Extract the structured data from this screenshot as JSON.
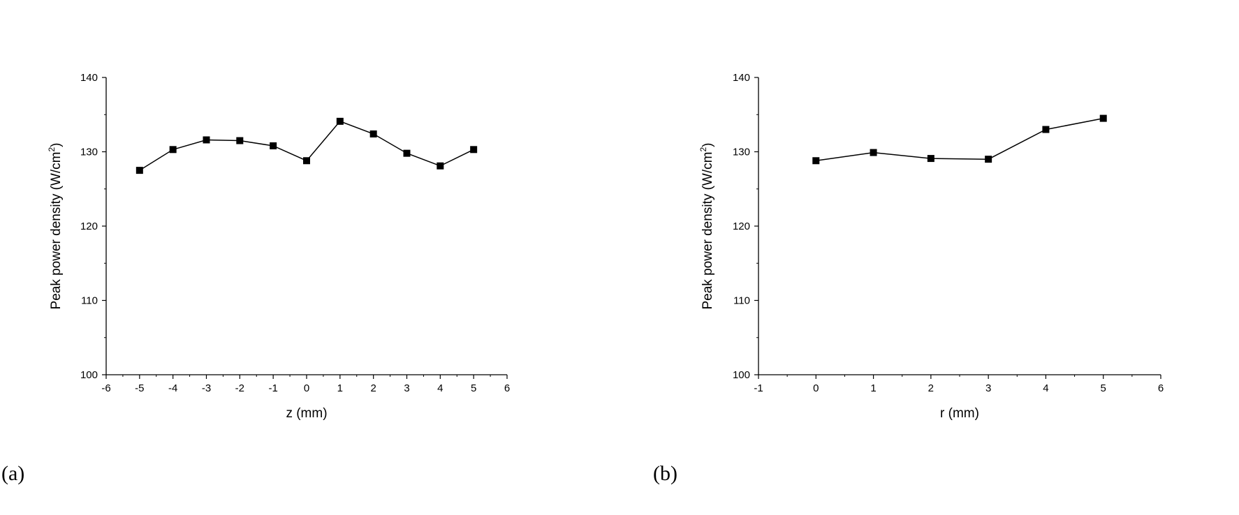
{
  "chart_data": [
    {
      "type": "line",
      "panel_label": "(a)",
      "xlabel": "z (mm)",
      "ylabel": "Peak power density (W/cm",
      "ylabel_sup": "2",
      "ylabel_end": ")",
      "xlim": [
        -6,
        6
      ],
      "ylim": [
        100,
        140
      ],
      "xticks": [
        -6,
        -5,
        -4,
        -3,
        -2,
        -1,
        0,
        1,
        2,
        3,
        4,
        5,
        6
      ],
      "yticks": [
        100,
        110,
        120,
        130,
        140
      ],
      "grid": false,
      "marker": "square",
      "series": [
        {
          "x": [
            -5,
            -4,
            -3,
            -2,
            -1,
            0,
            1,
            2,
            3,
            4,
            5
          ],
          "values": [
            127.5,
            130.3,
            131.6,
            131.5,
            130.8,
            128.8,
            134.1,
            132.4,
            129.8,
            128.1,
            130.3
          ]
        }
      ]
    },
    {
      "type": "line",
      "panel_label": "(b)",
      "xlabel": "r (mm)",
      "ylabel": "Peak power density (W/cm",
      "ylabel_sup": "2",
      "ylabel_end": ")",
      "xlim": [
        -1,
        6
      ],
      "ylim": [
        100,
        140
      ],
      "xticks": [
        -1,
        0,
        1,
        2,
        3,
        4,
        5,
        6
      ],
      "yticks": [
        100,
        110,
        120,
        130,
        140
      ],
      "grid": false,
      "marker": "square",
      "series": [
        {
          "x": [
            0,
            1,
            2,
            3,
            4,
            5
          ],
          "values": [
            128.8,
            129.9,
            129.1,
            129.0,
            133.0,
            134.5
          ]
        }
      ]
    }
  ]
}
